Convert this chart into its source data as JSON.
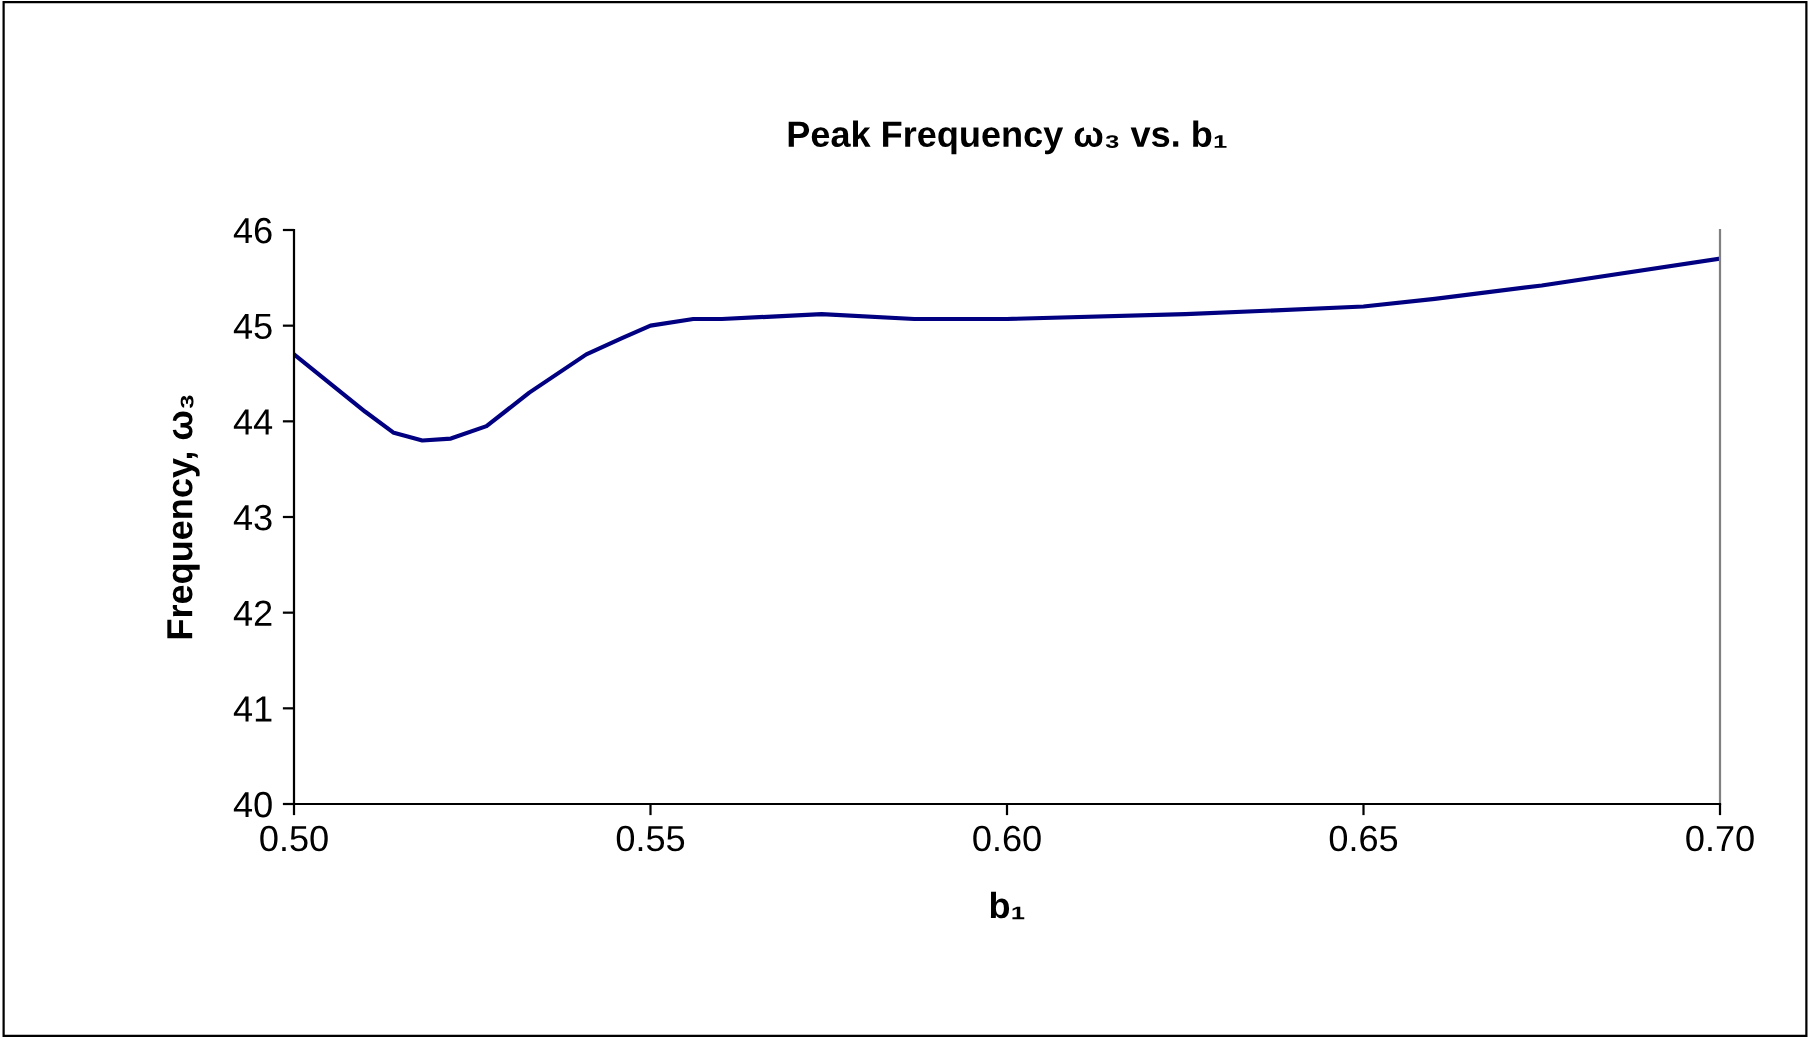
{
  "chart_data": {
    "type": "line",
    "title": "Peak Frequency ω₃ vs. b₁",
    "xlabel": "b₁",
    "ylabel": "Frequency, ω₃",
    "x": [
      0.5,
      0.505,
      0.51,
      0.514,
      0.518,
      0.522,
      0.527,
      0.533,
      0.541,
      0.546,
      0.55,
      0.556,
      0.56,
      0.574,
      0.587,
      0.6,
      0.625,
      0.65,
      0.66,
      0.675,
      0.7
    ],
    "series": [
      {
        "color": "#000080",
        "values": [
          44.7,
          44.4,
          44.1,
          43.88,
          43.8,
          43.82,
          43.95,
          44.3,
          44.7,
          44.87,
          45.0,
          45.07,
          45.07,
          45.12,
          45.07,
          45.07,
          45.12,
          45.2,
          45.28,
          45.42,
          45.7
        ]
      }
    ],
    "xlim": [
      0.5,
      0.7
    ],
    "ylim": [
      40,
      46
    ],
    "xticks": [
      {
        "value": 0.5,
        "label": "0.50"
      },
      {
        "value": 0.55,
        "label": "0.55"
      },
      {
        "value": 0.6,
        "label": "0.60"
      },
      {
        "value": 0.65,
        "label": "0.65"
      },
      {
        "value": 0.7,
        "label": "0.70"
      }
    ],
    "yticks": [
      40,
      41,
      42,
      43,
      44,
      45,
      46
    ],
    "grid": false,
    "legend": false,
    "marker": "none",
    "line_style": "solid"
  }
}
